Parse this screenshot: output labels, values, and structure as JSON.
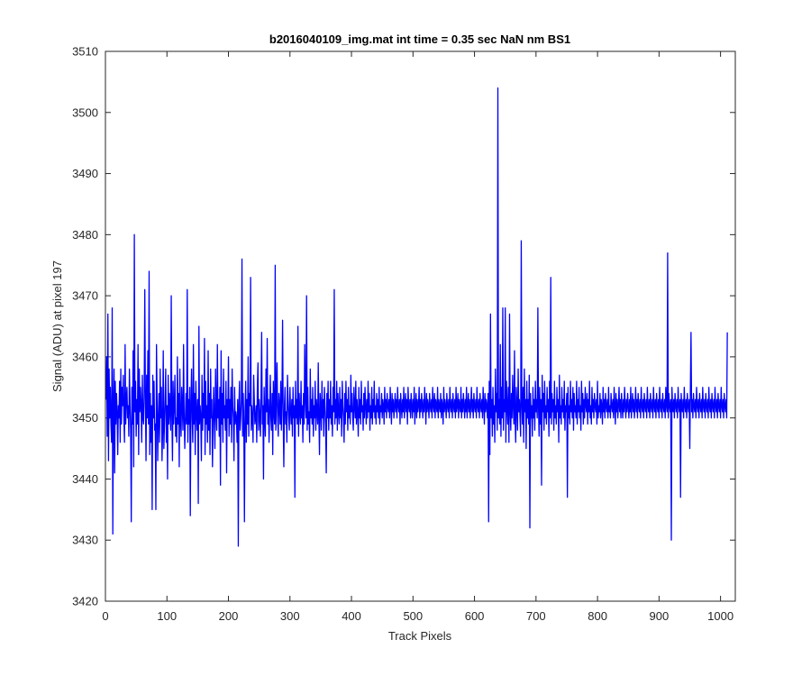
{
  "chart_data": {
    "type": "line",
    "title": "b2016040109_img.mat int time = 0.35 sec  NaN nm BS1",
    "xlabel": "Track Pixels",
    "ylabel": "Signal (ADU) at pixel 197",
    "xlim": [
      0,
      1024
    ],
    "ylim": [
      3420,
      3510
    ],
    "xticks": [
      0,
      100,
      200,
      300,
      400,
      500,
      600,
      700,
      800,
      900,
      1000
    ],
    "yticks": [
      3420,
      3430,
      3440,
      3450,
      3460,
      3470,
      3480,
      3490,
      3500,
      3510
    ],
    "grid": false,
    "series": [
      {
        "color": "#0000ff",
        "note_x": "x runs 1..1024 (one value per track pixel)",
        "y": [
          3453,
          3460,
          3447,
          3467,
          3443,
          3458,
          3450,
          3455,
          3449,
          3446,
          3468,
          3431,
          3452,
          3458,
          3441,
          3456,
          3449,
          3454,
          3451,
          3444,
          3452,
          3450,
          3456,
          3446,
          3458,
          3449,
          3455,
          3452,
          3457,
          3450,
          3446,
          3462,
          3449,
          3453,
          3455,
          3450,
          3452,
          3447,
          3458,
          3452,
          3448,
          3433,
          3455,
          3449,
          3461,
          3442,
          3480,
          3451,
          3456,
          3447,
          3453,
          3449,
          3462,
          3444,
          3458,
          3451,
          3455,
          3452,
          3446,
          3457,
          3450,
          3449,
          3454,
          3471,
          3453,
          3443,
          3457,
          3450,
          3461,
          3449,
          3474,
          3444,
          3454,
          3446,
          3452,
          3435,
          3457,
          3450,
          3456,
          3448,
          3449,
          3435,
          3462,
          3453,
          3443,
          3450,
          3454,
          3446,
          3458,
          3450,
          3455,
          3443,
          3448,
          3461,
          3445,
          3449,
          3453,
          3458,
          3446,
          3452,
          3440,
          3457,
          3449,
          3454,
          3451,
          3448,
          3470,
          3451,
          3443,
          3456,
          3449,
          3452,
          3457,
          3447,
          3450,
          3446,
          3460,
          3449,
          3454,
          3442,
          3458,
          3450,
          3447,
          3455,
          3452,
          3448,
          3462,
          3450,
          3445,
          3450,
          3454,
          3449,
          3471,
          3446,
          3453,
          3449,
          3455,
          3434,
          3452,
          3458,
          3450,
          3446,
          3462,
          3449,
          3454,
          3444,
          3456,
          3451,
          3448,
          3453,
          3436,
          3465,
          3449,
          3452,
          3450,
          3443,
          3457,
          3448,
          3454,
          3450,
          3463,
          3444,
          3456,
          3449,
          3452,
          3446,
          3461,
          3448,
          3454,
          3444,
          3458,
          3450,
          3453,
          3442,
          3449,
          3455,
          3450,
          3445,
          3458,
          3451,
          3448,
          3462,
          3450,
          3453,
          3447,
          3455,
          3439,
          3461,
          3449,
          3454,
          3446,
          3458,
          3450,
          3452,
          3448,
          3456,
          3441,
          3453,
          3450,
          3460,
          3447,
          3453,
          3449,
          3455,
          3446,
          3458,
          3452,
          3450,
          3443,
          3455,
          3449,
          3451,
          3450,
          3446,
          3453,
          3429,
          3452,
          3456,
          3448,
          3450,
          3453,
          3476,
          3447,
          3454,
          3449,
          3433,
          3451,
          3456,
          3446,
          3453,
          3449,
          3460,
          3447,
          3454,
          3452,
          3473,
          3448,
          3452,
          3450,
          3446,
          3457,
          3453,
          3449,
          3450,
          3452,
          3446,
          3455,
          3459,
          3448,
          3453,
          3450,
          3447,
          3454,
          3464,
          3449,
          3452,
          3440,
          3455,
          3450,
          3447,
          3458,
          3451,
          3463,
          3449,
          3453,
          3446,
          3451,
          3457,
          3450,
          3448,
          3454,
          3444,
          3456,
          3451,
          3449,
          3475,
          3448,
          3453,
          3459,
          3450,
          3447,
          3454,
          3452,
          3449,
          3456,
          3448,
          3453,
          3466,
          3450,
          3442,
          3452,
          3455,
          3449,
          3451,
          3446,
          3457,
          3453,
          3450,
          3448,
          3455,
          3451,
          3449,
          3453,
          3447,
          3455,
          3450,
          3452,
          3437,
          3456,
          3450,
          3453,
          3449,
          3465,
          3447,
          3454,
          3451,
          3449,
          3456,
          3450,
          3452,
          3446,
          3454,
          3449,
          3462,
          3453,
          3450,
          3470,
          3448,
          3455,
          3449,
          3451,
          3446,
          3458,
          3450,
          3453,
          3449,
          3455,
          3447,
          3452,
          3450,
          3456,
          3448,
          3453,
          3451,
          3449,
          3459,
          3450,
          3444,
          3454,
          3452,
          3448,
          3456,
          3450,
          3453,
          3447,
          3455,
          3452,
          3449,
          3441,
          3454,
          3450,
          3456,
          3448,
          3453,
          3450,
          3456,
          3449,
          3452,
          3447,
          3455,
          3451,
          3471,
          3449,
          3453,
          3450,
          3456,
          3448,
          3454,
          3451,
          3449,
          3455,
          3450,
          3453,
          3447,
          3456,
          3452,
          3450,
          3446,
          3454,
          3449,
          3456,
          3451,
          3453,
          3448,
          3455,
          3450,
          3452,
          3449,
          3457,
          3451,
          3454,
          3450,
          3448,
          3455,
          3452,
          3450,
          3456,
          3449,
          3453,
          3451,
          3447,
          3455,
          3450,
          3453,
          3449,
          3456,
          3451,
          3452,
          3448,
          3454,
          3450,
          3455,
          3452,
          3449,
          3453,
          3450,
          3456,
          3451,
          3454,
          3448,
          3452,
          3450,
          3455,
          3449,
          3453,
          3451,
          3456,
          3450,
          3452,
          3449,
          3454,
          3451,
          3453,
          3450,
          3455,
          3449,
          3452,
          3451,
          3454,
          3450,
          3453,
          3452,
          3449,
          3455,
          3451,
          3453,
          3450,
          3454,
          3452,
          3451,
          3453,
          3450,
          3455,
          3452,
          3449,
          3454,
          3451,
          3453,
          3450,
          3452,
          3454,
          3451,
          3453,
          3450,
          3455,
          3452,
          3451,
          3453,
          3449,
          3454,
          3452,
          3450,
          3453,
          3451,
          3455,
          3450,
          3452,
          3454,
          3451,
          3453,
          3449,
          3455,
          3452,
          3451,
          3453,
          3450,
          3454,
          3452,
          3450,
          3453,
          3451,
          3455,
          3449,
          3452,
          3454,
          3450,
          3453,
          3451,
          3452,
          3455,
          3450,
          3453,
          3451,
          3454,
          3452,
          3450,
          3453,
          3451,
          3455,
          3452,
          3449,
          3454,
          3451,
          3453,
          3452,
          3450,
          3454,
          3452,
          3451,
          3453,
          3450,
          3455,
          3452,
          3451,
          3454,
          3450,
          3453,
          3452,
          3451,
          3455,
          3450,
          3453,
          3452,
          3451,
          3454,
          3450,
          3453,
          3452,
          3449,
          3455,
          3451,
          3453,
          3452,
          3450,
          3454,
          3452,
          3451,
          3453,
          3450,
          3455,
          3452,
          3451,
          3453,
          3450,
          3454,
          3452,
          3451,
          3453,
          3450,
          3455,
          3451,
          3452,
          3454,
          3450,
          3453,
          3452,
          3451,
          3455,
          3450,
          3453,
          3451,
          3454,
          3452,
          3450,
          3453,
          3451,
          3455,
          3450,
          3452,
          3454,
          3451,
          3453,
          3450,
          3452,
          3455,
          3451,
          3453,
          3450,
          3454,
          3452,
          3451,
          3453,
          3450,
          3455,
          3452,
          3451,
          3453,
          3450,
          3454,
          3452,
          3451,
          3453,
          3450,
          3455,
          3452,
          3449,
          3454,
          3451,
          3453,
          3452,
          3450,
          3454,
          3433,
          3456,
          3444,
          3467,
          3450,
          3453,
          3447,
          3455,
          3449,
          3452,
          3446,
          3458,
          3451,
          3454,
          3448,
          3504,
          3450,
          3453,
          3449,
          3462,
          3447,
          3455,
          3450,
          3468,
          3448,
          3453,
          3451,
          3468,
          3446,
          3456,
          3452,
          3449,
          3455,
          3446,
          3467,
          3451,
          3448,
          3454,
          3450,
          3457,
          3452,
          3449,
          3461,
          3450,
          3446,
          3455,
          3452,
          3448,
          3458,
          3451,
          3453,
          3450,
          3447,
          3479,
          3452,
          3449,
          3455,
          3446,
          3458,
          3451,
          3453,
          3445,
          3456,
          3450,
          3453,
          3449,
          3457,
          3432,
          3454,
          3450,
          3452,
          3447,
          3455,
          3450,
          3453,
          3448,
          3456,
          3451,
          3453,
          3450,
          3468,
          3452,
          3447,
          3455,
          3449,
          3453,
          3439,
          3457,
          3451,
          3454,
          3448,
          3456,
          3450,
          3452,
          3449,
          3455,
          3451,
          3453,
          3447,
          3456,
          3450,
          3473,
          3449,
          3454,
          3451,
          3453,
          3448,
          3456,
          3450,
          3452,
          3449,
          3455,
          3451,
          3453,
          3446,
          3457,
          3450,
          3452,
          3449,
          3455,
          3451,
          3453,
          3450,
          3456,
          3448,
          3452,
          3451,
          3454,
          3437,
          3455,
          3450,
          3452,
          3449,
          3456,
          3451,
          3453,
          3450,
          3455,
          3448,
          3454,
          3451,
          3452,
          3450,
          3456,
          3449,
          3453,
          3451,
          3455,
          3450,
          3452,
          3448,
          3456,
          3451,
          3454,
          3449,
          3453,
          3450,
          3455,
          3452,
          3451,
          3454,
          3449,
          3453,
          3451,
          3456,
          3450,
          3452,
          3449,
          3455,
          3451,
          3453,
          3450,
          3454,
          3452,
          3451,
          3453,
          3449,
          3456,
          3450,
          3452,
          3451,
          3454,
          3450,
          3453,
          3452,
          3449,
          3455,
          3451,
          3453,
          3450,
          3454,
          3452,
          3451,
          3453,
          3450,
          3455,
          3451,
          3452,
          3450,
          3454,
          3452,
          3451,
          3453,
          3450,
          3455,
          3452,
          3449,
          3454,
          3451,
          3453,
          3450,
          3452,
          3455,
          3451,
          3453,
          3450,
          3454,
          3452,
          3450,
          3453,
          3451,
          3455,
          3452,
          3450,
          3453,
          3451,
          3454,
          3452,
          3450,
          3453,
          3451,
          3455,
          3450,
          3452,
          3454,
          3451,
          3453,
          3450,
          3452,
          3455,
          3451,
          3453,
          3450,
          3454,
          3452,
          3451,
          3453,
          3450,
          3455,
          3452,
          3451,
          3453,
          3450,
          3454,
          3452,
          3451,
          3453,
          3450,
          3455,
          3452,
          3451,
          3453,
          3450,
          3454,
          3452,
          3451,
          3453,
          3450,
          3455,
          3452,
          3451,
          3453,
          3450,
          3454,
          3452,
          3451,
          3453,
          3450,
          3455,
          3452,
          3451,
          3453,
          3450,
          3454,
          3452,
          3451,
          3453,
          3450,
          3455,
          3452,
          3451,
          3477,
          3450,
          3454,
          3452,
          3451,
          3453,
          3430,
          3455,
          3452,
          3451,
          3453,
          3450,
          3454,
          3452,
          3451,
          3453,
          3450,
          3455,
          3452,
          3451,
          3453,
          3437,
          3454,
          3452,
          3451,
          3453,
          3450,
          3455,
          3452,
          3451,
          3453,
          3450,
          3454,
          3452,
          3451,
          3453,
          3445,
          3455,
          3464,
          3451,
          3453,
          3450,
          3454,
          3452,
          3451,
          3453,
          3450,
          3455,
          3452,
          3451,
          3453,
          3450,
          3454,
          3452,
          3451,
          3453,
          3450,
          3455,
          3452,
          3451,
          3453,
          3450,
          3454,
          3452,
          3451,
          3453,
          3450,
          3455,
          3452,
          3451,
          3453,
          3450,
          3454,
          3452,
          3451,
          3453,
          3450,
          3455,
          3452,
          3451,
          3453,
          3450,
          3454,
          3452,
          3451,
          3453,
          3450,
          3455,
          3452,
          3451,
          3453,
          3450,
          3454,
          3452,
          3451,
          3453,
          3450,
          3464
        ]
      }
    ]
  }
}
